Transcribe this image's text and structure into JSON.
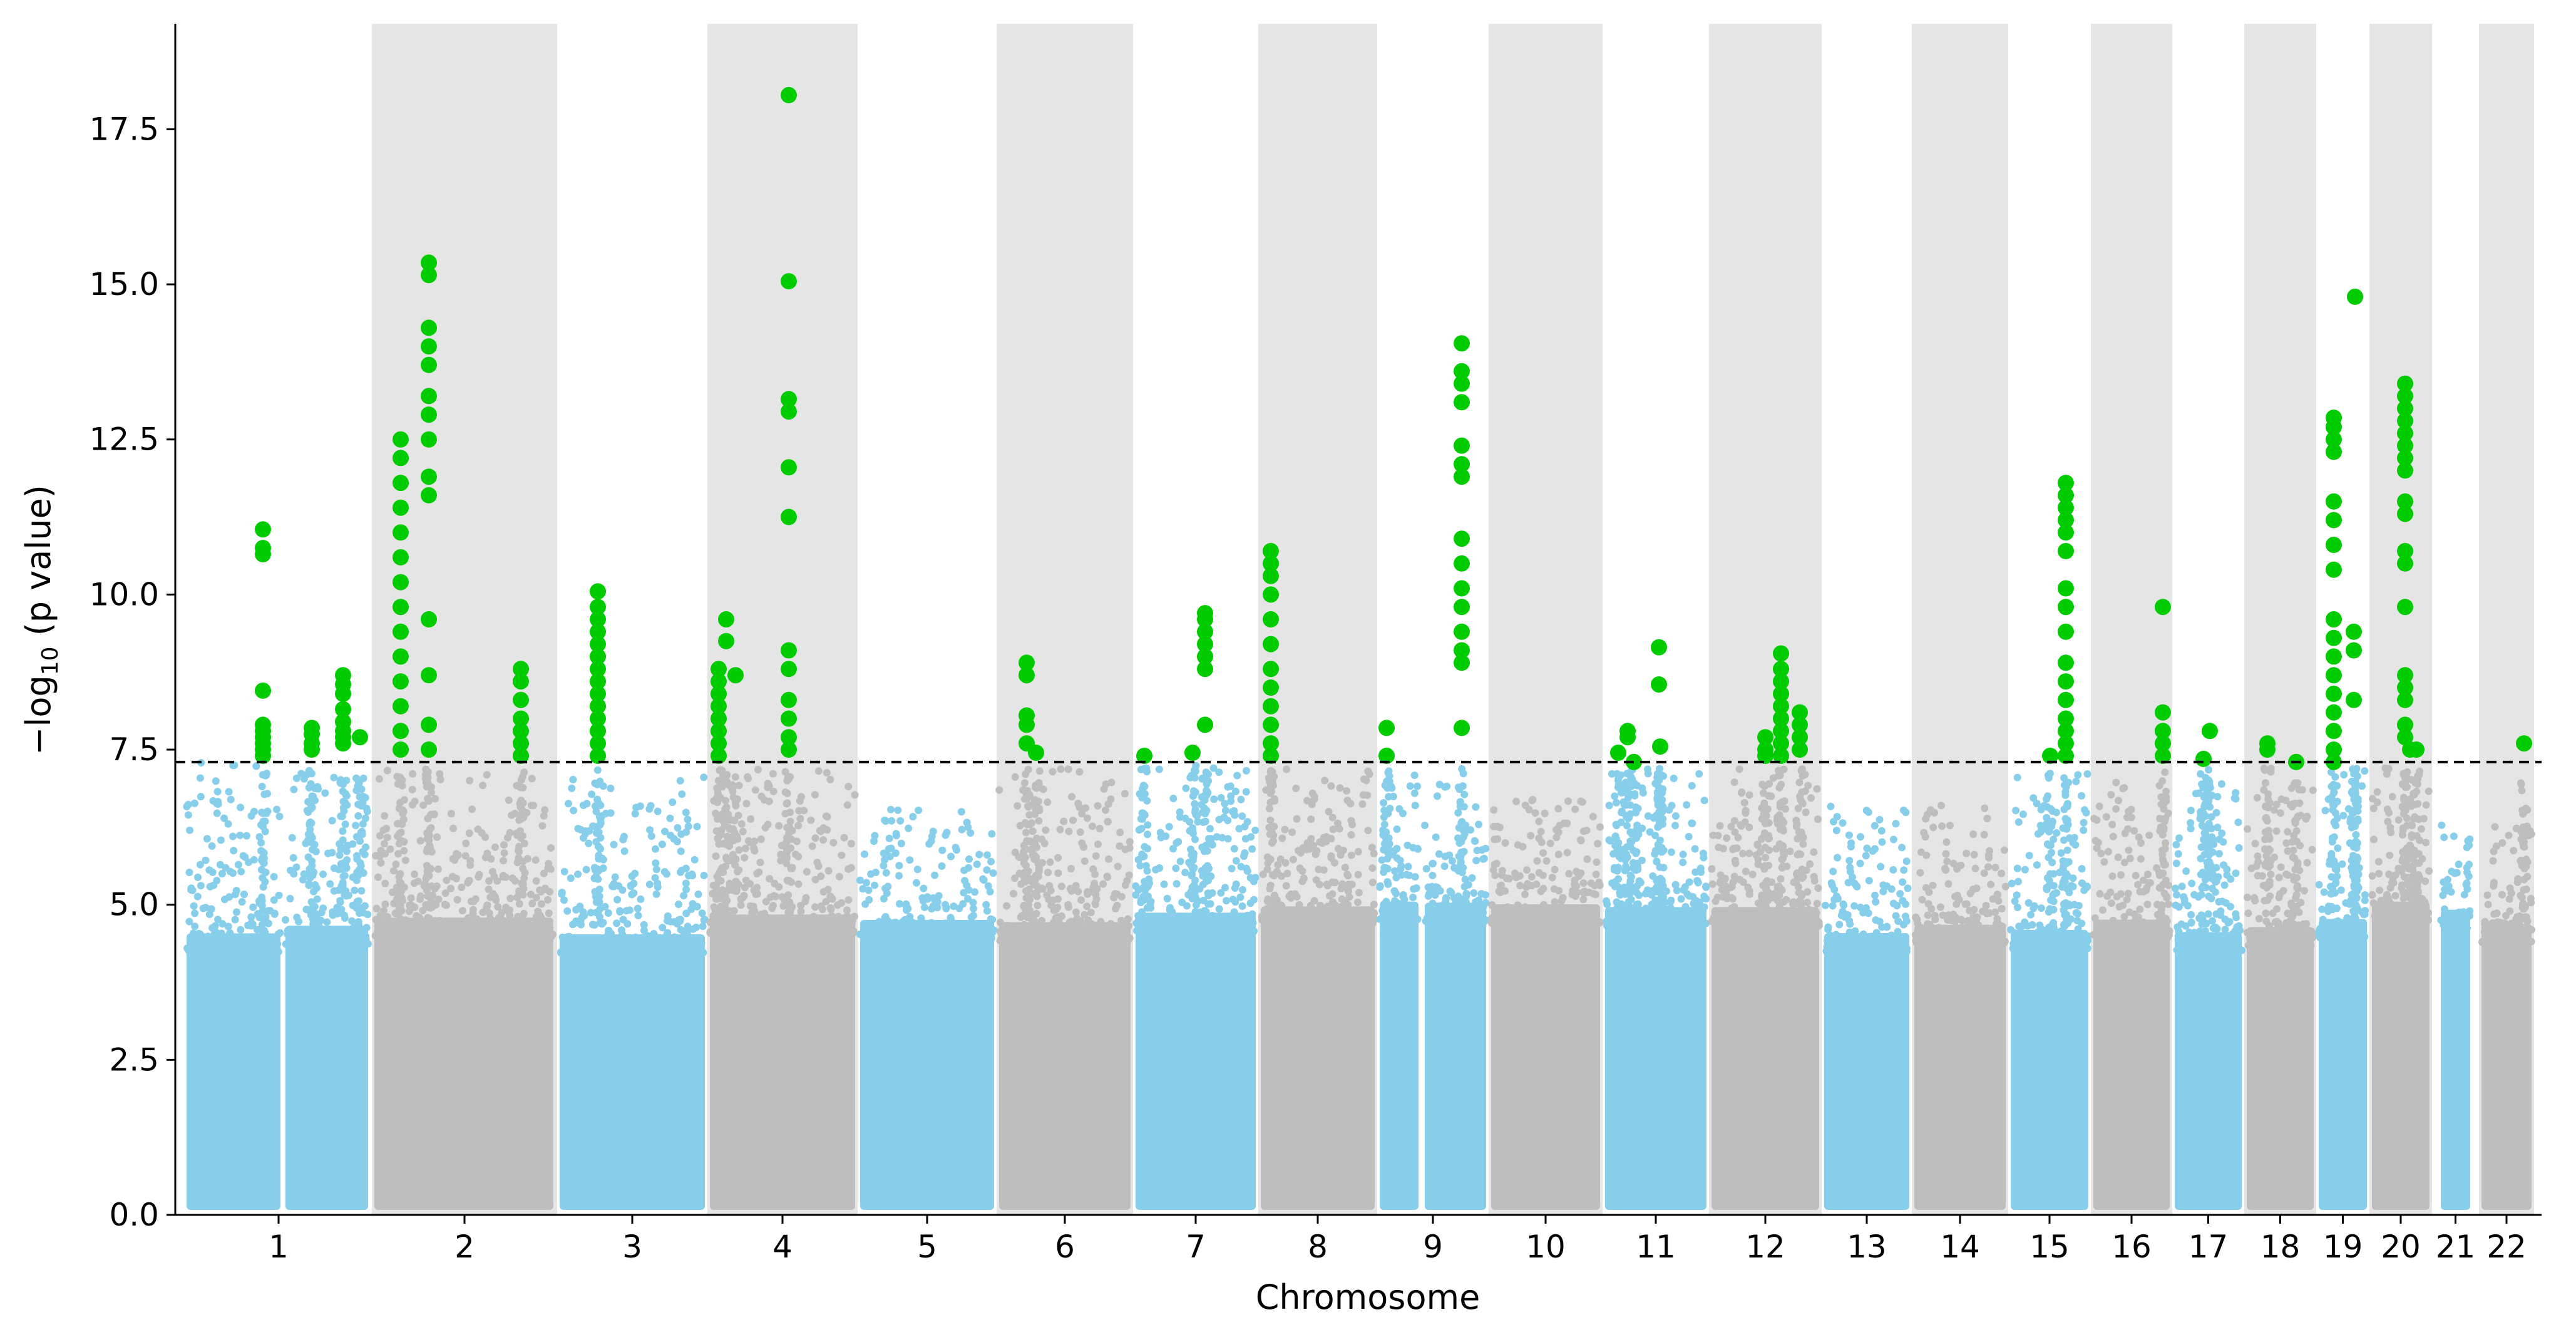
{
  "chart_data": {
    "type": "scatter",
    "subtype": "manhattan",
    "title": "",
    "xlabel": "Chromosome",
    "ylabel": {
      "prefix": "−log",
      "sub": "10",
      "suffix": " (p value)"
    },
    "ylim": [
      0,
      19.2
    ],
    "yticks": [
      0.0,
      2.5,
      5.0,
      7.5,
      10.0,
      12.5,
      15.0,
      17.5
    ],
    "ytick_labels": [
      "0.0",
      "2.5",
      "5.0",
      "7.5",
      "10.0",
      "12.5",
      "15.0",
      "17.5"
    ],
    "significance_threshold": 7.3,
    "colors": {
      "odd_chromosome": "#87CEEB",
      "even_chromosome": "#BEBEBE",
      "significant": "#00CC00",
      "band": "#E5E5E5",
      "threshold": "#000000"
    },
    "chromosomes": [
      {
        "label": "1",
        "peak": 7.3,
        "hits": [
          11.05,
          10.75,
          10.65,
          8.45,
          7.9,
          7.8,
          7.7,
          7.6,
          7.5,
          7.4,
          7.85,
          7.75,
          7.6,
          7.5,
          8.7,
          8.55,
          8.4,
          8.15,
          7.95,
          7.8,
          7.7,
          7.6,
          7.7
        ]
      },
      {
        "label": "2",
        "peak": 7.2,
        "hits": [
          12.5,
          12.2,
          11.8,
          11.4,
          11.0,
          10.6,
          10.2,
          9.8,
          9.4,
          9.0,
          8.6,
          8.2,
          7.8,
          7.5,
          15.35,
          15.15,
          14.3,
          14.0,
          13.7,
          13.2,
          12.9,
          12.5,
          11.9,
          11.6,
          9.6,
          8.7,
          7.9,
          7.5,
          8.8,
          8.6,
          8.3,
          8.0,
          7.8,
          7.6,
          7.4
        ]
      },
      {
        "label": "3",
        "peak": 7.1,
        "hits": [
          10.05,
          9.8,
          9.6,
          9.4,
          9.2,
          9.0,
          8.8,
          8.6,
          8.4,
          8.2,
          8.0,
          7.8,
          7.6,
          7.4
        ]
      },
      {
        "label": "4",
        "peak": 7.2,
        "hits": [
          8.8,
          8.6,
          8.4,
          8.2,
          8.0,
          7.8,
          7.6,
          7.4,
          9.6,
          9.25,
          8.7,
          18.05,
          15.05,
          13.15,
          12.95,
          12.05,
          11.25,
          9.1,
          8.8,
          8.3,
          8.0,
          7.7,
          7.5
        ]
      },
      {
        "label": "5",
        "peak": 6.6,
        "hits": []
      },
      {
        "label": "6",
        "peak": 7.2,
        "hits": [
          8.9,
          8.7,
          8.05,
          7.9,
          7.6,
          7.45
        ]
      },
      {
        "label": "7",
        "peak": 7.3,
        "hits": [
          7.4,
          7.45,
          9.7,
          9.6,
          9.4,
          9.2,
          9.0,
          8.8,
          7.9
        ]
      },
      {
        "label": "8",
        "peak": 7.2,
        "hits": [
          10.7,
          10.5,
          10.3,
          10.0,
          9.6,
          9.2,
          8.8,
          8.5,
          8.2,
          7.9,
          7.6,
          7.4
        ]
      },
      {
        "label": "9",
        "peak": 7.1,
        "hits": [
          7.85,
          7.4,
          14.05,
          13.6,
          13.4,
          13.1,
          12.4,
          12.1,
          11.9,
          10.9,
          10.5,
          10.1,
          9.8,
          9.4,
          9.1,
          8.9,
          7.85
        ]
      },
      {
        "label": "10",
        "peak": 6.7,
        "hits": []
      },
      {
        "label": "11",
        "peak": 7.2,
        "hits": [
          7.45,
          7.8,
          7.7,
          7.3,
          9.15,
          8.55,
          7.55
        ]
      },
      {
        "label": "12",
        "peak": 7.2,
        "hits": [
          7.7,
          7.5,
          7.4,
          9.05,
          8.8,
          8.6,
          8.4,
          8.2,
          8.0,
          7.8,
          7.6,
          7.4,
          8.1,
          7.9,
          7.7,
          7.5
        ]
      },
      {
        "label": "13",
        "peak": 6.6,
        "hits": []
      },
      {
        "label": "14",
        "peak": 6.6,
        "hits": []
      },
      {
        "label": "15",
        "peak": 7.2,
        "hits": [
          7.4,
          11.8,
          11.6,
          11.4,
          11.2,
          11.0,
          10.7,
          10.1,
          9.8,
          9.4,
          8.9,
          8.6,
          8.3,
          8.0,
          7.8,
          7.6,
          7.4
        ]
      },
      {
        "label": "16",
        "peak": 7.0,
        "hits": [
          9.8,
          8.1,
          7.8,
          7.6,
          7.4
        ]
      },
      {
        "label": "17",
        "peak": 7.0,
        "hits": [
          7.35,
          7.8
        ]
      },
      {
        "label": "18",
        "peak": 7.0,
        "hits": [
          7.6,
          7.5,
          7.3
        ]
      },
      {
        "label": "19",
        "peak": 7.2,
        "hits": [
          12.85,
          12.7,
          12.5,
          12.3,
          11.5,
          11.2,
          10.8,
          10.4,
          9.6,
          9.3,
          9.0,
          8.7,
          8.4,
          8.1,
          7.8,
          7.5,
          7.3,
          14.8,
          9.4,
          9.1,
          8.3
        ]
      },
      {
        "label": "20",
        "peak": 7.2,
        "hits": [
          13.4,
          13.2,
          13.0,
          12.8,
          12.6,
          12.4,
          12.2,
          12.0,
          11.5,
          11.3,
          10.7,
          10.5,
          9.8,
          8.7,
          8.5,
          8.3,
          7.9,
          7.7,
          7.5,
          7.5
        ]
      },
      {
        "label": "21",
        "peak": 6.3,
        "hits": []
      },
      {
        "label": "22",
        "peak": 6.3,
        "hits": [
          7.6
        ]
      }
    ]
  }
}
